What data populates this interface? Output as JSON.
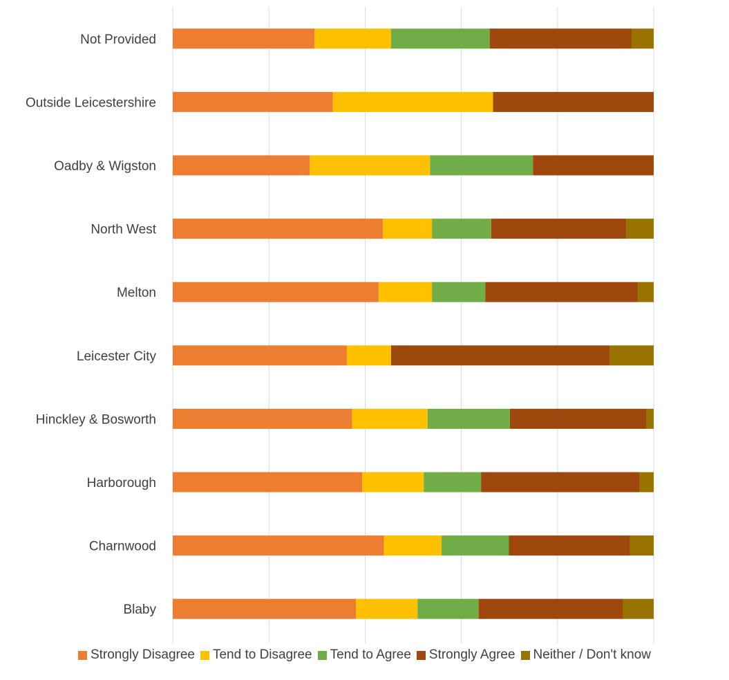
{
  "chart_data": {
    "type": "bar",
    "orientation": "horizontal",
    "stacked": "100%",
    "title": "",
    "xlabel": "",
    "ylabel": "",
    "xlim": [
      0,
      1
    ],
    "grid": true,
    "legend_position": "bottom",
    "categories": [
      "Not Provided",
      "Outside Leicestershire",
      "Oadby & Wigston",
      "North West",
      "Melton",
      "Leicester City",
      "Hinckley & Bosworth",
      "Harborough",
      "Charnwood",
      "Blaby"
    ],
    "series": [
      {
        "name": "Strongly Disagree",
        "color": "#ED7D31",
        "values": [
          0.295,
          0.333,
          0.285,
          0.437,
          0.428,
          0.362,
          0.373,
          0.394,
          0.439,
          0.381
        ]
      },
      {
        "name": "Tend to Disagree",
        "color": "#FFC000",
        "values": [
          0.159,
          0.333,
          0.25,
          0.102,
          0.111,
          0.092,
          0.157,
          0.128,
          0.12,
          0.128
        ]
      },
      {
        "name": "Tend to Agree",
        "color": "#70AD47",
        "values": [
          0.205,
          0.0,
          0.214,
          0.123,
          0.111,
          0.0,
          0.171,
          0.119,
          0.14,
          0.127
        ]
      },
      {
        "name": "Strongly Agree",
        "color": "#9E480E",
        "values": [
          0.295,
          0.334,
          0.251,
          0.281,
          0.317,
          0.455,
          0.284,
          0.33,
          0.252,
          0.3
        ]
      },
      {
        "name": "Neither / Don't know",
        "color": "#997300",
        "values": [
          0.046,
          0.0,
          0.0,
          0.057,
          0.033,
          0.091,
          0.015,
          0.029,
          0.049,
          0.064
        ]
      }
    ]
  }
}
